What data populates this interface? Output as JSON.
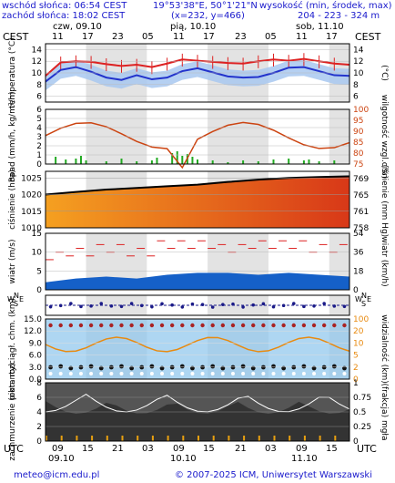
{
  "header": {
    "sunrise": "wschód słońca: 06:54 CEST",
    "sunset": "zachód słońca: 18:02 CEST",
    "coords": "19°53'38\"E, 50°1'21\"N",
    "grid": "(x=232, y=466)",
    "elevation_label": "wysokość (min, środek, max)",
    "elevation_values": "204 - 223 - 324 m"
  },
  "timezone_label": "CEST",
  "utc_label": "UTC",
  "days": [
    "czw, 09.10",
    "pią, 10.10",
    "sob, 11.10"
  ],
  "top_hours": [
    "11",
    "17",
    "23",
    "05",
    "11",
    "17",
    "23",
    "05",
    "11",
    "17"
  ],
  "bottom_hours": [
    "09",
    "15",
    "21",
    "03",
    "09",
    "15",
    "21",
    "03",
    "09",
    "15"
  ],
  "bottom_dates": [
    "09.10",
    "10.10",
    "11.10"
  ],
  "footer": {
    "email": "meteo@icm.edu.pl",
    "copyright": "© 2007-2025 ICM, Uniwersytet Warszawski"
  },
  "colors": {
    "temp_max": "#dd2222",
    "temp_mean": "#2233cc",
    "temp_band": "#a8c8f0",
    "precip": "#22aa22",
    "humidity": "#cc4411",
    "pressure_fill": "#e86020",
    "wind_fill": "#1560c8",
    "gust": "#dd2222",
    "night_shade": "#e3e3e3"
  },
  "panels": {
    "temperature": {
      "left_label": "temperatura (°C)",
      "right_label": "(°C)",
      "ticks": [
        "14",
        "12",
        "10",
        "8",
        "6"
      ]
    },
    "precip": {
      "left_label": "opad (mm/h, kg/m²/h)",
      "right_label": "wilgotność wzgl. (%)",
      "left_ticks": [
        "6",
        "5",
        "4",
        "3",
        "2",
        "1",
        "0"
      ],
      "right_ticks": [
        "100",
        "95",
        "90",
        "85",
        "80",
        "75"
      ]
    },
    "pressure": {
      "left_label": "ciśnienie (hPa)",
      "right_label": "ciśnienie (mm Hg)",
      "left_ticks": [
        "1025",
        "1020",
        "1015",
        "1010"
      ],
      "right_ticks": [
        "769",
        "765",
        "761",
        "758"
      ]
    },
    "wind": {
      "left_label": "wiatr (m/s)",
      "right_label": "wiatr (km/h)",
      "left_ticks": [
        "15",
        "10",
        "5",
        "0"
      ],
      "right_ticks": [
        "54",
        "36",
        "18",
        "0"
      ]
    },
    "direction": {
      "labels": [
        "W",
        "N",
        "E",
        "S",
        "W",
        "N",
        "E",
        "S"
      ]
    },
    "visibility": {
      "left_label": "pion. rozciągł. chm. (km)",
      "right_label": "widzialność (km)",
      "left_ticks": [
        "15.0",
        "12.0",
        "9.0",
        "6.0",
        "3.0",
        "0.0"
      ],
      "right_ticks": [
        "100",
        "20",
        "10",
        "5",
        "2",
        "0"
      ]
    },
    "cloud": {
      "left_label": "zachmurzenie (oktanty)",
      "right_label": "(frakcja) mgła",
      "left_ticks": [
        "8",
        "6",
        "4",
        "2",
        "0"
      ],
      "right_ticks": [
        "1",
        "0.75",
        "0.5",
        "0.25",
        "0"
      ]
    }
  },
  "chart_data": [
    {
      "type": "line",
      "ylabel": "temperatura (°C)",
      "ylim": [
        5,
        15
      ],
      "x": [
        0,
        3,
        6,
        9,
        12,
        15,
        18,
        21,
        24,
        27,
        30,
        33,
        36,
        39,
        42,
        45,
        48,
        51,
        54,
        57,
        60
      ],
      "series": [
        {
          "values": [
            9.5,
            11.8,
            12.0,
            11.9,
            11.5,
            11.2,
            11.4,
            11.0,
            11.6,
            12.3,
            12.1,
            11.9,
            11.7,
            11.6,
            12.0,
            12.3,
            12.1,
            12.4,
            12.0,
            11.6,
            11.4
          ]
        },
        {
          "values": [
            8.5,
            10.5,
            11.0,
            10.2,
            9.2,
            8.8,
            9.6,
            8.9,
            9.2,
            10.3,
            10.8,
            10.1,
            9.4,
            9.2,
            9.3,
            10.0,
            10.9,
            11.0,
            10.3,
            9.6,
            9.5
          ]
        }
      ]
    },
    {
      "type": "bar",
      "ylabel": "opad (mm/h, kg/m²/h)",
      "ylim": [
        0,
        6
      ],
      "x": [
        2,
        4,
        6,
        7,
        8,
        12,
        15,
        18,
        21,
        22,
        25,
        26,
        27,
        28,
        29,
        30,
        33,
        36,
        39,
        42,
        45,
        48,
        51,
        52,
        54,
        57
      ],
      "values": [
        0.8,
        0.5,
        0.6,
        0.9,
        0.4,
        0.3,
        0.6,
        0.3,
        0.4,
        0.7,
        1.2,
        1.4,
        0.9,
        1.1,
        0.8,
        0.5,
        0.4,
        0.2,
        0.4,
        0.3,
        0.5,
        0.6,
        0.4,
        0.5,
        0.3,
        0.4
      ]
    },
    {
      "type": "area",
      "ylabel": "ciśnienie (hPa)",
      "ylim": [
        1010,
        1027
      ],
      "x": [
        0,
        6,
        12,
        18,
        24,
        30,
        36,
        42,
        48,
        54,
        60
      ],
      "values": [
        1020,
        1020.8,
        1021.5,
        1022,
        1022.5,
        1023,
        1023.8,
        1024.5,
        1025,
        1025.3,
        1025.5
      ]
    },
    {
      "type": "area",
      "ylabel": "wiatr (m/s)",
      "ylim": [
        0,
        15
      ],
      "x": [
        0,
        6,
        12,
        18,
        24,
        30,
        36,
        42,
        48,
        54,
        60
      ],
      "series": [
        {
          "values": [
            2,
            3,
            3.5,
            3,
            4,
            4.5,
            4.5,
            4,
            4.5,
            4,
            3.5
          ]
        },
        {
          "values": [
            9,
            10,
            11,
            10,
            12,
            12,
            11,
            12,
            12,
            11,
            11
          ]
        }
      ]
    }
  ]
}
